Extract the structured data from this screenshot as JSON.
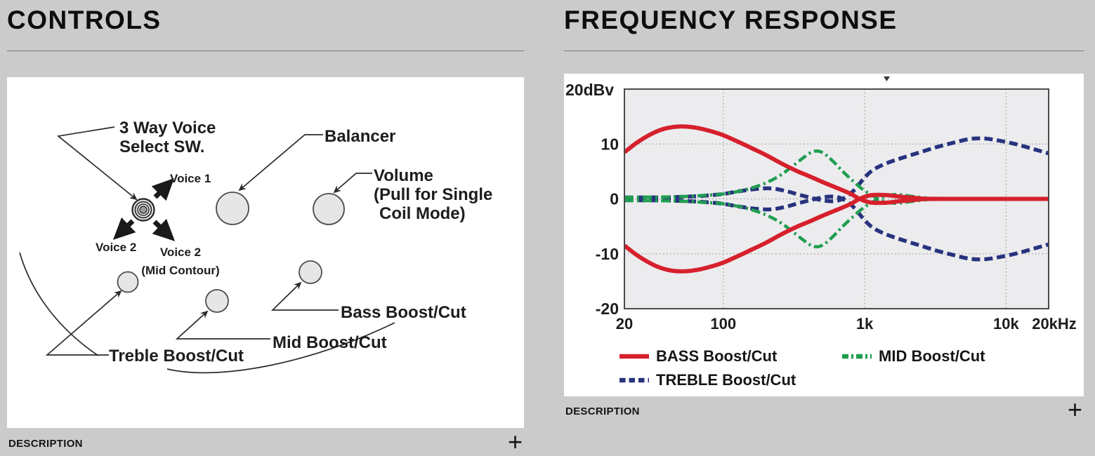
{
  "page": {
    "background": "#cbcbcb"
  },
  "left_panel": {
    "title": "CONTROLS",
    "description_label": "DESCRIPTION",
    "expand_symbol": "+",
    "diagram_labels": {
      "switch_line1": "3 Way Voice",
      "switch_line2": "Select SW.",
      "voice1": "Voice 1",
      "voice2_left": "Voice 2",
      "voice2_right_line1": "Voice 2",
      "voice2_right_line2": "(Mid Contour)",
      "balancer": "Balancer",
      "volume_line1": "Volume",
      "volume_line2": "(Pull for Single",
      "volume_line3": "Coil Mode)",
      "bass": "Bass Boost/Cut",
      "mid": "Mid Boost/Cut",
      "treble": "Treble Boost/Cut"
    }
  },
  "right_panel": {
    "title": "FREQUENCY RESPONSE",
    "description_label": "DESCRIPTION",
    "expand_symbol": "+"
  },
  "chart_data": {
    "type": "line",
    "title": "FREQUENCY RESPONSE",
    "x_axis": {
      "scale": "log",
      "unit": "Hz",
      "min": 20,
      "max": 20000,
      "tick_values": [
        20,
        100,
        1000,
        10000,
        20000
      ],
      "tick_labels": [
        "20",
        "100",
        "1k",
        "10k",
        "20kHz"
      ]
    },
    "y_axis": {
      "label": "20dBv",
      "unit": "dBv",
      "min": -20,
      "max": 20,
      "tick_values": [
        10,
        0,
        -10,
        -20
      ],
      "tick_labels": [
        "10",
        "0",
        "-10",
        "-20"
      ]
    },
    "grid": {
      "x_values": [
        100,
        1000,
        10000
      ],
      "y_values": [
        10,
        0,
        -10
      ],
      "style": "dotted"
    },
    "legend": [
      {
        "label": "BASS Boost/Cut",
        "color": "#d6202c",
        "line_style": "solid"
      },
      {
        "label": "MID Boost/Cut",
        "color": "#1f9e50",
        "line_style": "dash-dot"
      },
      {
        "label": "TREBLE Boost/Cut",
        "color": "#28337e",
        "line_style": "dashed"
      }
    ],
    "series": [
      {
        "name": "TREBLE Boost",
        "color": "#28337e",
        "line_style": "dashed",
        "width": 5.5,
        "points": [
          [
            20,
            0.25
          ],
          [
            40,
            0.3
          ],
          [
            60,
            0.45
          ],
          [
            80,
            0.65
          ],
          [
            100,
            0.9
          ],
          [
            130,
            1.4
          ],
          [
            170,
            1.8
          ],
          [
            220,
            1.9
          ],
          [
            280,
            1.4
          ],
          [
            350,
            0.7
          ],
          [
            450,
            0.0
          ],
          [
            550,
            -0.4
          ],
          [
            650,
            -0.3
          ],
          [
            750,
            0.5
          ],
          [
            850,
            1.7
          ],
          [
            1000,
            3.9
          ],
          [
            1150,
            5.3
          ],
          [
            1400,
            6.4
          ],
          [
            1800,
            7.4
          ],
          [
            2400,
            8.4
          ],
          [
            3200,
            9.4
          ],
          [
            4200,
            10.2
          ],
          [
            5500,
            10.9
          ],
          [
            7000,
            11.0
          ],
          [
            9000,
            10.6
          ],
          [
            12000,
            9.9
          ],
          [
            16000,
            9.0
          ],
          [
            20000,
            8.3
          ]
        ]
      },
      {
        "name": "TREBLE Cut",
        "color": "#28337e",
        "line_style": "dashed",
        "width": 5.5,
        "points": [
          [
            20,
            -0.25
          ],
          [
            40,
            -0.3
          ],
          [
            60,
            -0.45
          ],
          [
            80,
            -0.65
          ],
          [
            100,
            -0.9
          ],
          [
            130,
            -1.4
          ],
          [
            170,
            -1.8
          ],
          [
            220,
            -1.9
          ],
          [
            280,
            -1.4
          ],
          [
            350,
            -0.7
          ],
          [
            450,
            0.0
          ],
          [
            550,
            0.4
          ],
          [
            650,
            0.3
          ],
          [
            750,
            -0.5
          ],
          [
            850,
            -1.7
          ],
          [
            1000,
            -3.9
          ],
          [
            1150,
            -5.3
          ],
          [
            1400,
            -6.4
          ],
          [
            1800,
            -7.4
          ],
          [
            2400,
            -8.4
          ],
          [
            3200,
            -9.4
          ],
          [
            4200,
            -10.2
          ],
          [
            5500,
            -10.9
          ],
          [
            7000,
            -11.0
          ],
          [
            9000,
            -10.6
          ],
          [
            12000,
            -9.9
          ],
          [
            16000,
            -9.0
          ],
          [
            20000,
            -8.3
          ]
        ]
      },
      {
        "name": "MID Boost",
        "color": "#1f9e50",
        "line_style": "dash-dot",
        "width": 4.5,
        "points": [
          [
            20,
            0.3
          ],
          [
            40,
            0.35
          ],
          [
            60,
            0.5
          ],
          [
            80,
            0.7
          ],
          [
            100,
            0.9
          ],
          [
            130,
            1.4
          ],
          [
            160,
            2.0
          ],
          [
            200,
            2.9
          ],
          [
            250,
            4.2
          ],
          [
            300,
            5.7
          ],
          [
            360,
            7.3
          ],
          [
            420,
            8.5
          ],
          [
            470,
            8.7
          ],
          [
            520,
            8.2
          ],
          [
            600,
            6.8
          ],
          [
            700,
            5.0
          ],
          [
            800,
            3.6
          ],
          [
            950,
            1.9
          ],
          [
            1100,
            0.8
          ],
          [
            1250,
            0
          ],
          [
            1450,
            -0.6
          ],
          [
            1700,
            -0.8
          ],
          [
            2100,
            -0.5
          ],
          [
            2600,
            -0.2
          ],
          [
            3200,
            0
          ],
          [
            5000,
            0
          ],
          [
            10000,
            0
          ],
          [
            20000,
            0
          ]
        ]
      },
      {
        "name": "MID Cut",
        "color": "#1f9e50",
        "line_style": "dash-dot",
        "width": 4.5,
        "points": [
          [
            20,
            -0.3
          ],
          [
            40,
            -0.35
          ],
          [
            60,
            -0.5
          ],
          [
            80,
            -0.7
          ],
          [
            100,
            -0.9
          ],
          [
            130,
            -1.4
          ],
          [
            160,
            -2.0
          ],
          [
            200,
            -2.9
          ],
          [
            250,
            -4.2
          ],
          [
            300,
            -5.7
          ],
          [
            360,
            -7.3
          ],
          [
            420,
            -8.5
          ],
          [
            470,
            -8.7
          ],
          [
            520,
            -8.2
          ],
          [
            600,
            -6.8
          ],
          [
            700,
            -5.0
          ],
          [
            800,
            -3.6
          ],
          [
            950,
            -1.9
          ],
          [
            1100,
            -0.8
          ],
          [
            1250,
            0
          ],
          [
            1450,
            0.6
          ],
          [
            1700,
            0.8
          ],
          [
            2100,
            0.5
          ],
          [
            2600,
            0.2
          ],
          [
            3200,
            0
          ],
          [
            5000,
            0
          ],
          [
            10000,
            0
          ],
          [
            20000,
            0
          ]
        ]
      },
      {
        "name": "BASS Boost",
        "color": "#d6202c",
        "line_style": "solid",
        "width": 6,
        "points": [
          [
            20,
            8.5
          ],
          [
            25,
            10.4
          ],
          [
            32,
            12.0
          ],
          [
            40,
            12.9
          ],
          [
            50,
            13.2
          ],
          [
            63,
            13.0
          ],
          [
            80,
            12.4
          ],
          [
            100,
            11.6
          ],
          [
            130,
            10.3
          ],
          [
            160,
            9.2
          ],
          [
            200,
            8.0
          ],
          [
            260,
            6.4
          ],
          [
            330,
            5.1
          ],
          [
            400,
            4.2
          ],
          [
            500,
            3.1
          ],
          [
            650,
            1.9
          ],
          [
            800,
            0.9
          ],
          [
            920,
            0
          ],
          [
            1100,
            -0.65
          ],
          [
            1400,
            -0.7
          ],
          [
            1800,
            -0.4
          ],
          [
            2300,
            -0.15
          ],
          [
            2800,
            0
          ],
          [
            4000,
            0
          ],
          [
            7000,
            0
          ],
          [
            12000,
            0
          ],
          [
            20000,
            0
          ]
        ]
      },
      {
        "name": "BASS Cut",
        "color": "#d6202c",
        "line_style": "solid",
        "width": 6,
        "points": [
          [
            20,
            -8.5
          ],
          [
            25,
            -10.4
          ],
          [
            32,
            -12.0
          ],
          [
            40,
            -12.9
          ],
          [
            50,
            -13.2
          ],
          [
            63,
            -13.0
          ],
          [
            80,
            -12.4
          ],
          [
            100,
            -11.6
          ],
          [
            130,
            -10.3
          ],
          [
            160,
            -9.2
          ],
          [
            200,
            -8.0
          ],
          [
            260,
            -6.4
          ],
          [
            330,
            -5.1
          ],
          [
            400,
            -4.2
          ],
          [
            500,
            -3.1
          ],
          [
            650,
            -1.9
          ],
          [
            800,
            -0.9
          ],
          [
            920,
            0
          ],
          [
            1100,
            0.65
          ],
          [
            1400,
            0.7
          ],
          [
            1800,
            0.4
          ],
          [
            2300,
            0.15
          ],
          [
            2800,
            0
          ],
          [
            4000,
            0
          ],
          [
            7000,
            0
          ],
          [
            12000,
            0
          ],
          [
            20000,
            0
          ]
        ]
      }
    ]
  }
}
